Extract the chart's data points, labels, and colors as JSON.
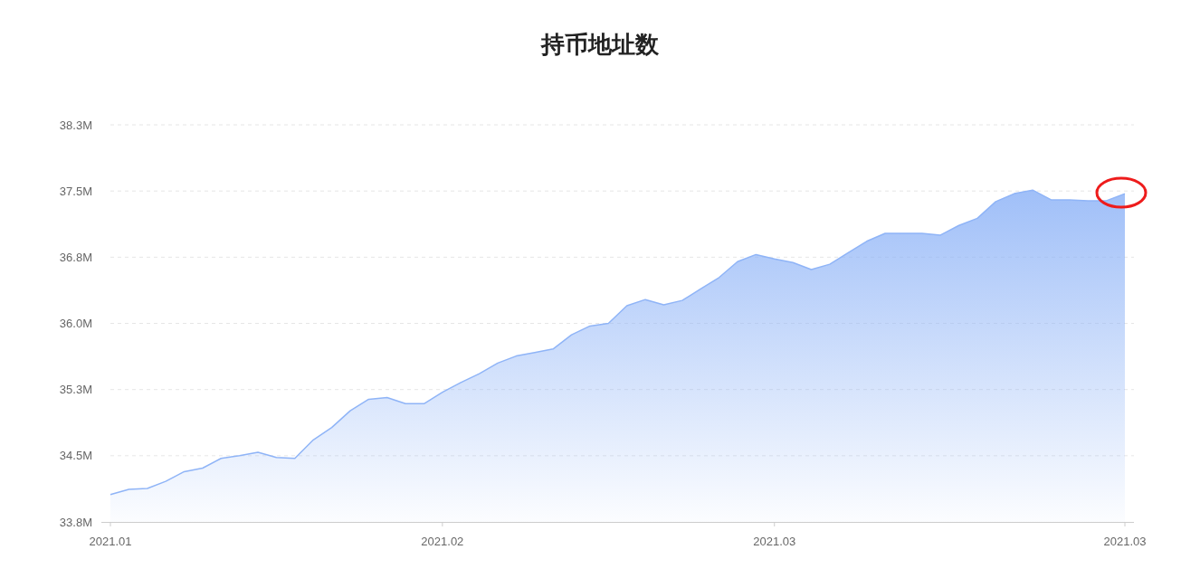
{
  "chart_data": {
    "type": "area",
    "title": "持币地址数",
    "categories": [
      "2021.01",
      null,
      null,
      null,
      null,
      null,
      null,
      null,
      null,
      null,
      null,
      null,
      null,
      null,
      null,
      null,
      null,
      null,
      "2021.02",
      null,
      null,
      null,
      null,
      null,
      null,
      null,
      null,
      null,
      null,
      null,
      null,
      null,
      null,
      null,
      null,
      null,
      "2021.03",
      null,
      null,
      null,
      null,
      null,
      null,
      null,
      null,
      null,
      null,
      null,
      null,
      null,
      null,
      null,
      null,
      null,
      null,
      "2021.03"
    ],
    "series": [
      {
        "color": "#8fb4f7",
        "values": [
          34.06,
          34.12,
          34.13,
          34.21,
          34.32,
          34.36,
          34.47,
          34.5,
          34.54,
          34.48,
          34.47,
          34.68,
          34.82,
          35.01,
          35.14,
          35.16,
          35.09,
          35.09,
          35.22,
          35.33,
          35.43,
          35.55,
          35.63,
          35.67,
          35.71,
          35.87,
          35.97,
          36.0,
          36.2,
          36.27,
          36.21,
          36.26,
          36.39,
          36.52,
          36.7,
          36.78,
          36.73,
          36.69,
          36.61,
          36.67,
          36.8,
          36.93,
          37.02,
          37.02,
          37.02,
          37.0,
          37.11,
          37.19,
          37.38,
          37.47,
          37.51,
          37.4,
          37.4,
          37.39,
          37.39,
          37.47
        ]
      }
    ],
    "ylim": [
      33.75,
      38.25
    ],
    "yticks": [
      {
        "value": 33.75,
        "label": "33.8M"
      },
      {
        "value": 34.5,
        "label": "34.5M"
      },
      {
        "value": 35.25,
        "label": "35.3M"
      },
      {
        "value": 36.0,
        "label": "36.0M"
      },
      {
        "value": 36.75,
        "label": "36.8M"
      },
      {
        "value": 37.5,
        "label": "37.5M"
      },
      {
        "value": 38.25,
        "label": "38.3M"
      }
    ],
    "grid": "y"
  }
}
